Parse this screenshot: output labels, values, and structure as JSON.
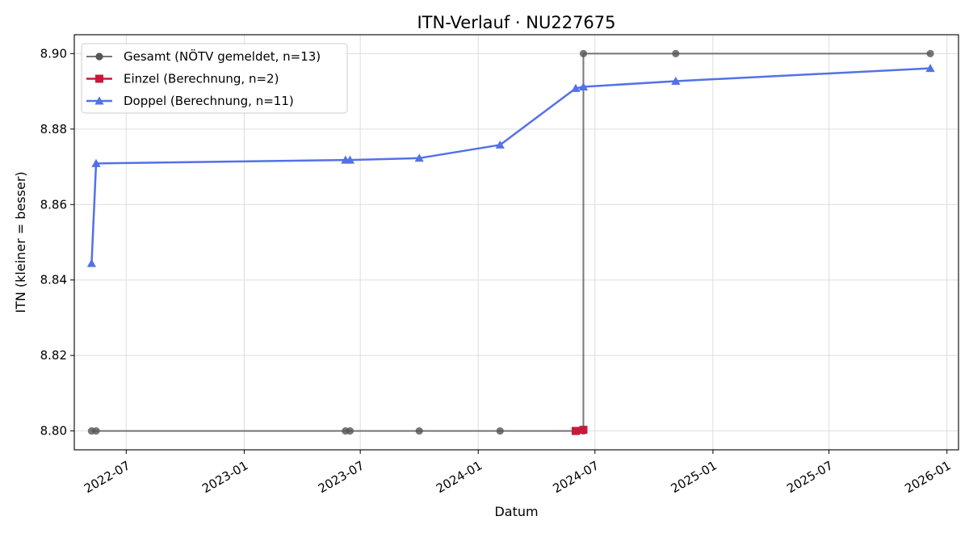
{
  "chart_data": {
    "type": "line",
    "title": "ITN-Verlauf · NU227675",
    "xlabel": "Datum",
    "ylabel": "ITN  (kleiner = besser)",
    "ylim": [
      8.795,
      8.905
    ],
    "xlim": [
      "2022-04-11",
      "2026-01-19"
    ],
    "yticks": [
      8.8,
      8.82,
      8.84,
      8.86,
      8.88,
      8.9
    ],
    "ytick_labels": [
      "8.80",
      "8.82",
      "8.84",
      "8.86",
      "8.88",
      "8.90"
    ],
    "xticks": [
      "2022-07-01",
      "2023-01-01",
      "2023-07-01",
      "2024-01-01",
      "2024-07-01",
      "2025-01-01",
      "2025-07-01",
      "2026-01-01"
    ],
    "xtick_labels": [
      "2022-07",
      "2023-01",
      "2023-07",
      "2024-01",
      "2024-07",
      "2025-01",
      "2025-07",
      "2026-01"
    ],
    "grid": true,
    "legend_position": "top-left",
    "series": [
      {
        "name": "Gesamt (NÖTV gemeldet, n=13)",
        "color": "#555555",
        "marker": "circle",
        "x": [
          "2022-05-08",
          "2022-05-15",
          "2023-06-08",
          "2023-06-15",
          "2023-10-01",
          "2024-02-04",
          "2024-06-01",
          "2024-06-13",
          "2024-06-13",
          "2024-11-04",
          "2025-12-06"
        ],
        "y": [
          8.8,
          8.8,
          8.8,
          8.8,
          8.8,
          8.8,
          8.8,
          8.8,
          8.9,
          8.9,
          8.9
        ]
      },
      {
        "name": "Einzel (Berechnung, n=2)",
        "color": "#c8183c",
        "marker": "square",
        "x": [
          "2024-06-01",
          "2024-06-13"
        ],
        "y": [
          8.8,
          8.8003
        ]
      },
      {
        "name": "Doppel (Berechnung, n=11)",
        "color": "#5371e8",
        "marker": "triangle",
        "x": [
          "2022-05-08",
          "2022-05-15",
          "2023-06-08",
          "2023-06-15",
          "2023-10-01",
          "2024-02-04",
          "2024-06-01",
          "2024-06-13",
          "2024-11-04",
          "2025-12-06"
        ],
        "y": [
          8.8444,
          8.8709,
          8.8718,
          8.8718,
          8.8723,
          8.8758,
          8.8908,
          8.8912,
          8.8927,
          8.8961
        ]
      }
    ]
  }
}
